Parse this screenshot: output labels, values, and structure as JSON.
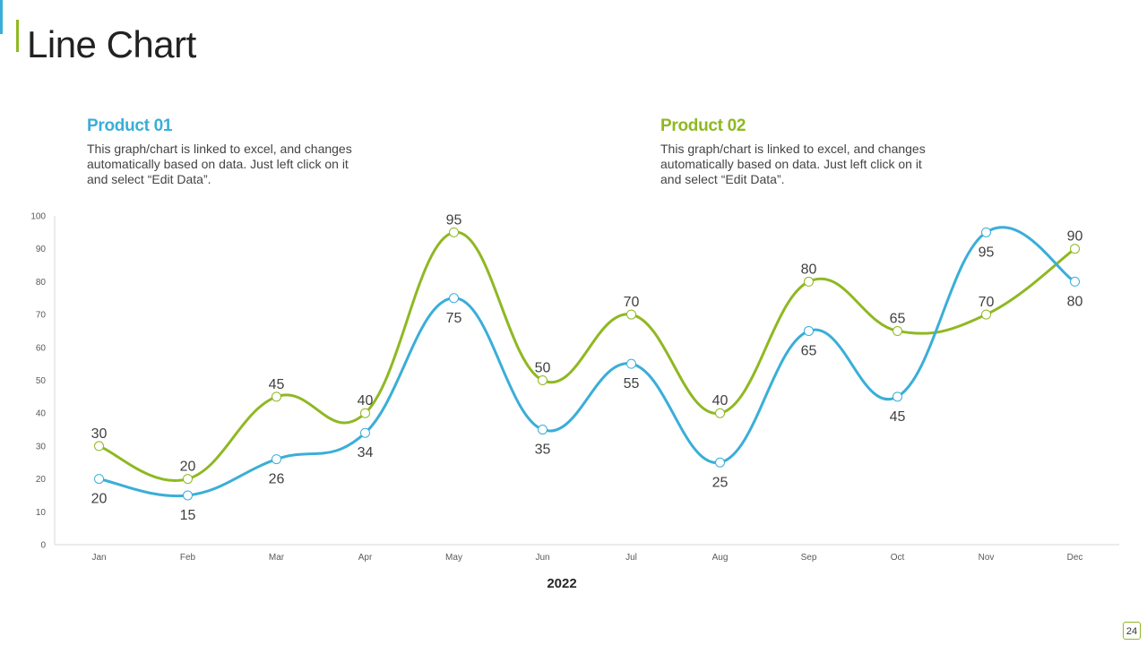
{
  "slide": {
    "title": "Line Chart",
    "page_number": "24"
  },
  "products": [
    {
      "name": "Product 01",
      "description": "This graph/chart is linked to excel, and changes automatically based on data. Just left click on it and select “Edit Data”.",
      "color": "#3aaed8"
    },
    {
      "name": "Product 02",
      "description": "This graph/chart is linked to excel, and changes automatically based on data. Just left click on it and select “Edit Data”.",
      "color": "#8fb822"
    }
  ],
  "chart_data": {
    "type": "line",
    "title": "",
    "xlabel": "2022",
    "ylabel": "",
    "categories": [
      "Jan",
      "Feb",
      "Mar",
      "Apr",
      "May",
      "Jun",
      "Jul",
      "Aug",
      "Sep",
      "Oct",
      "Nov",
      "Dec"
    ],
    "ylim": [
      0,
      100
    ],
    "yticks": [
      0,
      10,
      20,
      30,
      40,
      50,
      60,
      70,
      80,
      90,
      100
    ],
    "smooth": true,
    "series": [
      {
        "name": "Product 01",
        "color": "#3aaed8",
        "values": [
          20,
          15,
          26,
          34,
          75,
          35,
          55,
          25,
          65,
          45,
          95,
          80
        ],
        "label_positions": [
          "below",
          "below",
          "below",
          "below",
          "below",
          "below",
          "below",
          "below",
          "below",
          "below",
          "below",
          "below"
        ]
      },
      {
        "name": "Product 02",
        "color": "#8fb822",
        "values": [
          30,
          20,
          45,
          40,
          95,
          50,
          70,
          40,
          80,
          65,
          70,
          90
        ],
        "label_positions": [
          "above",
          "above",
          "above",
          "above",
          "above",
          "above",
          "above",
          "above",
          "above",
          "above",
          "above",
          "above"
        ]
      }
    ]
  }
}
